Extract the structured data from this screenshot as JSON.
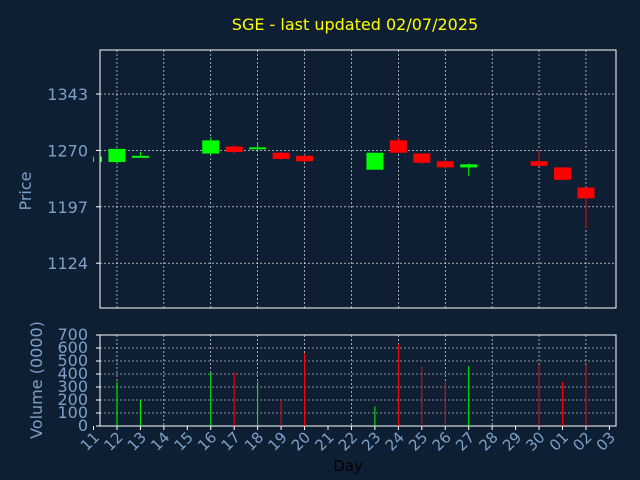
{
  "chart_data": {
    "title": "SGE - last updated 02/07/2025",
    "xlabel": "Day",
    "price_panel": {
      "type": "candlestick",
      "ylabel": "Price",
      "ylim": [
        1066,
        1400
      ],
      "yticks": [
        1124,
        1197,
        1270,
        1343
      ],
      "grid": true
    },
    "volume_panel": {
      "type": "bar",
      "ylabel": "Volume (0000)",
      "ylim": [
        0,
        700
      ],
      "yticks": [
        0,
        100,
        200,
        300,
        400,
        500,
        600,
        700
      ],
      "grid": true
    },
    "x_tick_labels": [
      "11",
      "12",
      "13",
      "14",
      "15",
      "16",
      "17",
      "18",
      "19",
      "20",
      "21",
      "22",
      "23",
      "24",
      "25",
      "26",
      "27",
      "28",
      "29",
      "30",
      "01",
      "02",
      "03"
    ],
    "up_color": "#00ff00",
    "down_color": "#ff0000",
    "candles": [
      {
        "day": "11",
        "open": 1255,
        "close": 1262,
        "high": 1262,
        "low": 1255
      },
      {
        "day": "12",
        "open": 1255,
        "close": 1272,
        "high": 1272,
        "low": 1252
      },
      {
        "day": "13",
        "open": 1261,
        "close": 1263,
        "high": 1268,
        "low": 1261
      },
      {
        "day": "16",
        "open": 1266,
        "close": 1283,
        "high": 1287,
        "low": 1264
      },
      {
        "day": "17",
        "open": 1275,
        "close": 1268,
        "high": 1277,
        "low": 1266
      },
      {
        "day": "18",
        "open": 1272,
        "close": 1274,
        "high": 1280,
        "low": 1270
      },
      {
        "day": "19",
        "open": 1267,
        "close": 1259,
        "high": 1268,
        "low": 1258
      },
      {
        "day": "20",
        "open": 1263,
        "close": 1256,
        "high": 1264,
        "low": 1255
      },
      {
        "day": "23",
        "open": 1245,
        "close": 1267,
        "high": 1267,
        "low": 1245
      },
      {
        "day": "24",
        "open": 1283,
        "close": 1267,
        "high": 1285,
        "low": 1267
      },
      {
        "day": "25",
        "open": 1266,
        "close": 1254,
        "high": 1266,
        "low": 1252
      },
      {
        "day": "26",
        "open": 1256,
        "close": 1248,
        "high": 1258,
        "low": 1246
      },
      {
        "day": "27",
        "open": 1248,
        "close": 1252,
        "high": 1253,
        "low": 1237
      },
      {
        "day": "30",
        "open": 1256,
        "close": 1250,
        "high": 1270,
        "low": 1250
      },
      {
        "day": "01",
        "open": 1248,
        "close": 1232,
        "high": 1248,
        "low": 1232
      },
      {
        "day": "02",
        "open": 1222,
        "close": 1208,
        "high": 1222,
        "low": 1170
      }
    ],
    "volume": [
      {
        "day": "11",
        "value": 0
      },
      {
        "day": "12",
        "value": 340
      },
      {
        "day": "13",
        "value": 200
      },
      {
        "day": "16",
        "value": 410
      },
      {
        "day": "17",
        "value": 410
      },
      {
        "day": "18",
        "value": 340
      },
      {
        "day": "19",
        "value": 200
      },
      {
        "day": "20",
        "value": 560
      },
      {
        "day": "23",
        "value": 150
      },
      {
        "day": "24",
        "value": 630
      },
      {
        "day": "25",
        "value": 460
      },
      {
        "day": "26",
        "value": 340
      },
      {
        "day": "27",
        "value": 460
      },
      {
        "day": "30",
        "value": 470
      },
      {
        "day": "01",
        "value": 340
      },
      {
        "day": "02",
        "value": 470
      }
    ]
  }
}
